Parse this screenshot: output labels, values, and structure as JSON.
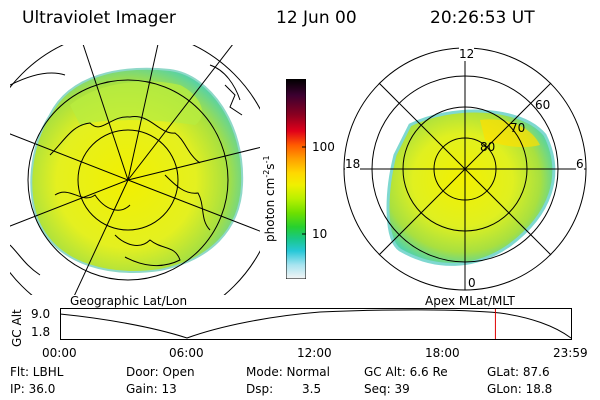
{
  "header": {
    "title": "Ultraviolet Imager",
    "date": "12 Jun 00",
    "time": "20:26:53 UT"
  },
  "colorbar": {
    "unit": "photon cm",
    "unit_exp_cm": "-2",
    "unit_s": "s",
    "unit_exp_s": "-1",
    "tick_100": "100",
    "tick_10": "10",
    "colors": [
      "#000000",
      "#3b0030",
      "#8b0020",
      "#e0001a",
      "#ff5a00",
      "#ff9800",
      "#ffd000",
      "#f0f000",
      "#b8f000",
      "#6ee000",
      "#27d02f",
      "#19c88a",
      "#27c8d8",
      "#a8e4f0",
      "#f5f5f5"
    ]
  },
  "left_panel": {
    "label": "Geographic Lat/Lon"
  },
  "right_panel": {
    "label": "Apex MLat/MLT",
    "mlt_labels": [
      "12",
      "18",
      "6",
      "0"
    ],
    "mlat_labels": [
      "60",
      "70",
      "80"
    ]
  },
  "timeline": {
    "ylabel": "GC Alt",
    "ytick_high": "9.0",
    "ytick_low": "1.8",
    "xticks": [
      "00:00",
      "06:00",
      "12:00",
      "18:00",
      "23:59"
    ],
    "marker_hour": 20.45
  },
  "info": {
    "filter": "Flt: LBHL",
    "door": "Door: Open",
    "mode": "Mode: Normal",
    "gc_alt": "GC Alt: 6.6 Re",
    "glat": "GLat: 87.6",
    "ip": "IP: 36.0",
    "gain": "Gain: 13",
    "dsp_label": "Dsp:",
    "dsp_value": "3.5",
    "seq": "Seq: 39",
    "glon": "GLon: 18.8"
  }
}
